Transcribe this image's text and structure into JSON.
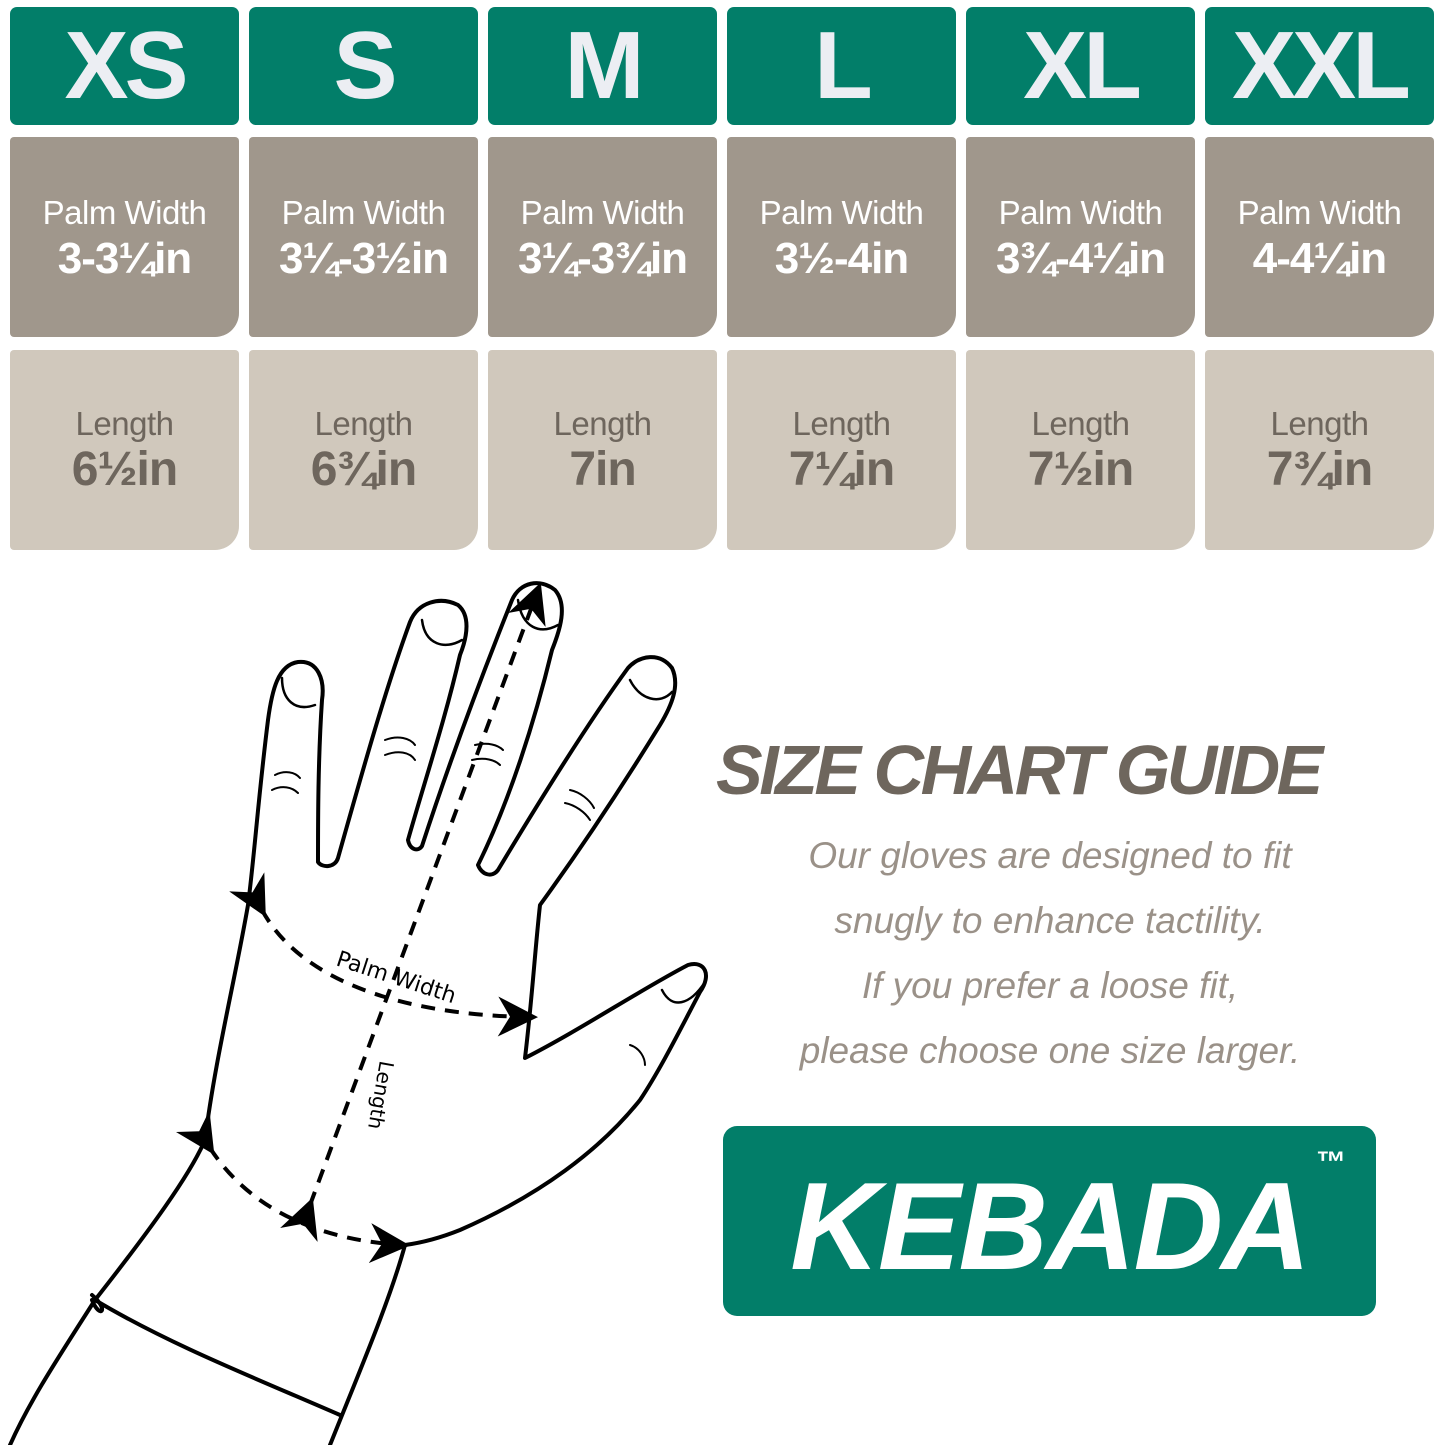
{
  "colors": {
    "header_green": "#027e69",
    "palm_bg": "#a0978c",
    "length_bg": "#d0c8bc",
    "text_brown": "#6e665d"
  },
  "sizes": [
    {
      "size": "XS",
      "palm_label": "Palm Width",
      "palm_value": "3-3¼in",
      "length_label": "Length",
      "length_value": "6½in"
    },
    {
      "size": "S",
      "palm_label": "Palm Width",
      "palm_value": "3¼-3½in",
      "length_label": "Length",
      "length_value": "6¾in"
    },
    {
      "size": "M",
      "palm_label": "Palm Width",
      "palm_value": "3¼-3¾in",
      "length_label": "Length",
      "length_value": "7in"
    },
    {
      "size": "L",
      "palm_label": "Palm Width",
      "palm_value": "3½-4in",
      "length_label": "Length",
      "length_value": "7¼in"
    },
    {
      "size": "XL",
      "palm_label": "Palm Width",
      "palm_value": "3¾-4¼in",
      "length_label": "Length",
      "length_value": "7½in"
    },
    {
      "size": "XXL",
      "palm_label": "Palm Width",
      "palm_value": "4-4¼in",
      "length_label": "Length",
      "length_value": "7¾in"
    }
  ],
  "diagram": {
    "palm_width_label": "Palm Width",
    "length_label": "Length"
  },
  "guide": {
    "title": "SIZE CHART GUIDE",
    "lines": [
      "Our gloves are designed to fit",
      "snugly to enhance tactility.",
      "If you prefer a loose fit,",
      "please choose one size larger."
    ]
  },
  "brand": {
    "name": "KEBADA",
    "trademark": "™"
  }
}
